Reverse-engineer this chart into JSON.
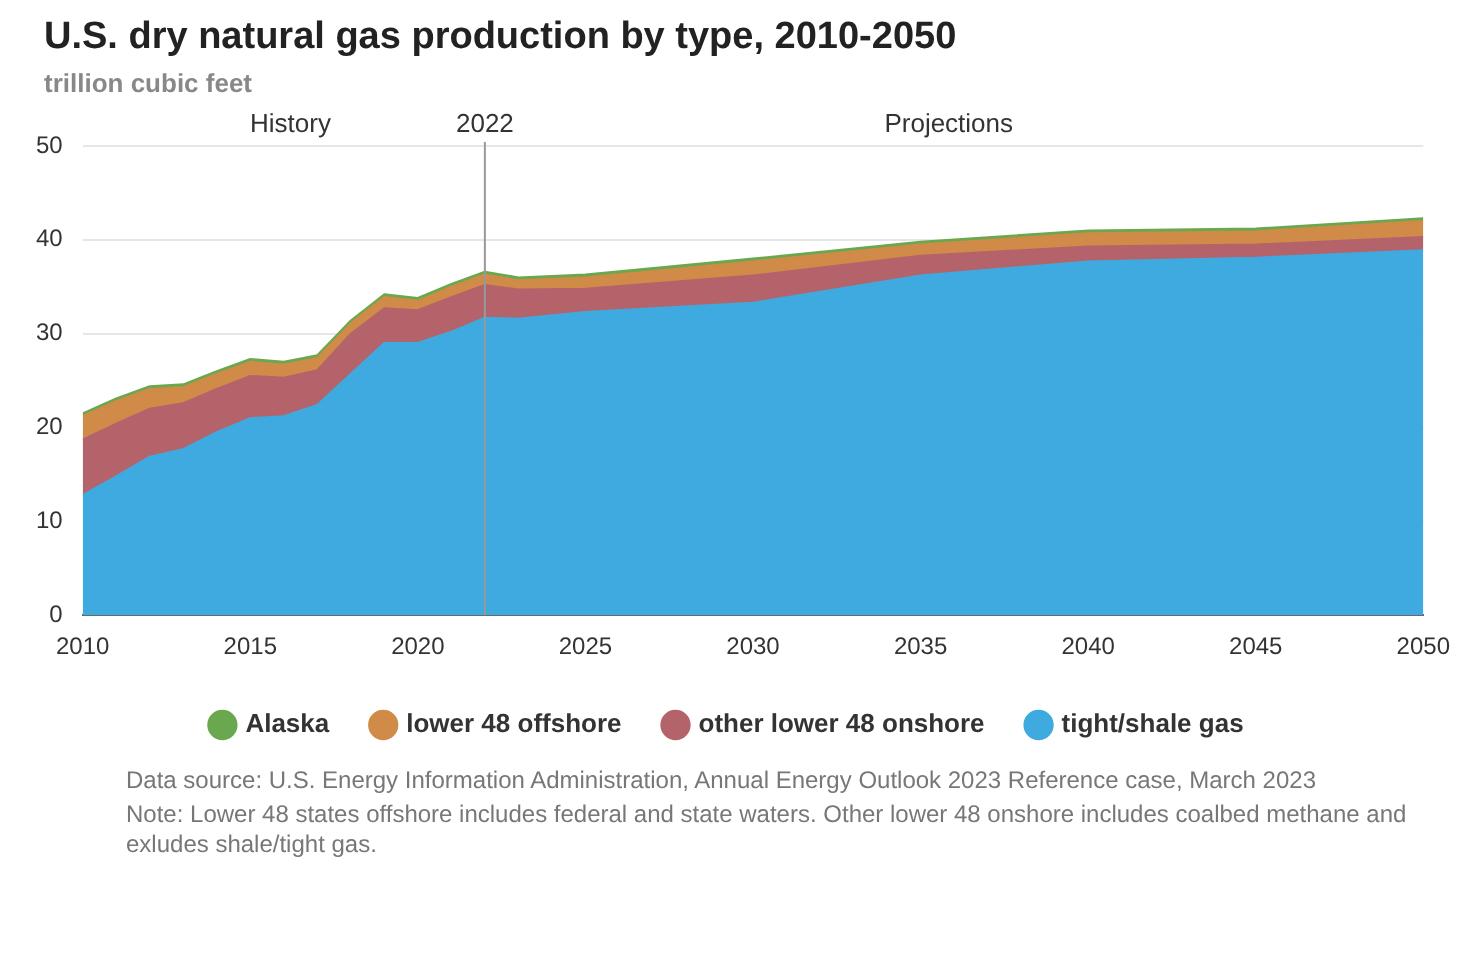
{
  "chart_data": {
    "type": "area",
    "title": "U.S. dry natural gas production by type, 2010-2050",
    "subtitle": "trillion cubic feet",
    "stacked": true,
    "x": [
      2010,
      2011,
      2012,
      2013,
      2014,
      2015,
      2016,
      2017,
      2018,
      2019,
      2020,
      2021,
      2022,
      2023,
      2025,
      2030,
      2035,
      2040,
      2045,
      2050
    ],
    "series": [
      {
        "name": "tight/shale gas",
        "color": "#3eaadf",
        "values": [
          12.8,
          14.8,
          16.9,
          17.7,
          19.5,
          21.0,
          21.2,
          22.4,
          25.7,
          29.0,
          29.0,
          30.2,
          31.7,
          31.6,
          32.3,
          33.3,
          36.2,
          37.7,
          38.1,
          38.9
        ]
      },
      {
        "name": "other lower 48 onshore",
        "color": "#b5636b",
        "values": [
          5.9,
          5.6,
          5.1,
          4.9,
          4.6,
          4.5,
          4.1,
          3.7,
          4.3,
          3.7,
          3.5,
          3.7,
          3.5,
          3.1,
          2.5,
          2.9,
          2.1,
          1.6,
          1.4,
          1.4
        ]
      },
      {
        "name": "lower 48 offshore",
        "color": "#d08b48",
        "values": [
          2.5,
          2.4,
          2.1,
          1.7,
          1.6,
          1.5,
          1.4,
          1.3,
          1.1,
          1.2,
          1.0,
          1.1,
          1.1,
          1.0,
          1.2,
          1.5,
          1.2,
          1.4,
          1.4,
          1.7
        ]
      },
      {
        "name": "Alaska",
        "color": "#6aa84f",
        "values": [
          0.3,
          0.3,
          0.3,
          0.3,
          0.3,
          0.3,
          0.3,
          0.3,
          0.3,
          0.3,
          0.3,
          0.3,
          0.3,
          0.3,
          0.3,
          0.3,
          0.3,
          0.3,
          0.3,
          0.3
        ]
      }
    ],
    "xlim": [
      2010,
      2050
    ],
    "xticks": [
      2010,
      2015,
      2020,
      2025,
      2030,
      2035,
      2040,
      2045,
      2050
    ],
    "ylim": [
      0,
      50
    ],
    "yticks": [
      0,
      10,
      20,
      30,
      40,
      50
    ],
    "grid": "y",
    "legend": "bottom",
    "ref_lines": [
      {
        "axis": "x",
        "value": 2022,
        "label": "2022",
        "color": "#999999"
      }
    ],
    "annotations": [
      "History",
      "Projections",
      "Data source: U.S. Energy Information Administration, Annual Energy Outlook 2023 Reference case, March 2023",
      "Note: Lower 48 states offshore includes federal and state waters. Other lower 48 onshore includes coalbed methane and exludes shale/tight gas."
    ]
  }
}
